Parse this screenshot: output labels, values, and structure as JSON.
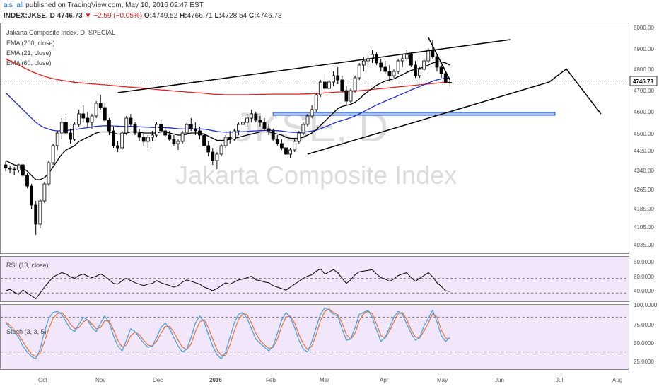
{
  "header": {
    "user": "ais_all",
    "published": " published on TradingView.com, May 10, 2016 02:47 EST",
    "ticker": "INDEX:JKSE, D",
    "last": "4746.73",
    "change": "−2.59 (−0.05%)",
    "o_label": "O:",
    "o": "4749.52",
    "h_label": "H:",
    "h": "4766.71",
    "l_label": "L:",
    "l": "4728.54",
    "c_label": "C:",
    "c": "4746.73"
  },
  "colors": {
    "ema200": "#e02020",
    "ema60": "#1f2fc8",
    "ema21": "#000000",
    "rsi_bg": "#f2e6fb",
    "stoch_k": "#3aa0e8",
    "stoch_d": "#f07030",
    "hline": "#2050c0"
  },
  "chart_data": [
    {
      "type": "candlestick",
      "title": "Jakarta Composite Index, D, SPECIAL",
      "watermark_symbol": "JKSE, D",
      "watermark_name": "Jakarta Composite Index",
      "legend": [
        "EMA (200, close)",
        "EMA (21, close)",
        "EMA (60, close)"
      ],
      "y_ticks": [
        "5000.00",
        "4900.00",
        "4800.00",
        "4700.00",
        "4600.00",
        "4500.00",
        "4420.00",
        "4340.00",
        "4265.00",
        "4185.00",
        "4105.00",
        "4035.00"
      ],
      "last_price_label": "4746.73",
      "x_ticks": [
        "Oct",
        "Nov",
        "Dec",
        "2016",
        "Feb",
        "Mar",
        "Apr",
        "May",
        "Jun",
        "Jul",
        "Aug"
      ],
      "ohlc": [
        [
          4360,
          4375,
          4330,
          4345
        ],
        [
          4345,
          4355,
          4320,
          4340
        ],
        [
          4340,
          4350,
          4310,
          4335
        ],
        [
          4335,
          4365,
          4325,
          4360
        ],
        [
          4360,
          4370,
          4300,
          4310
        ],
        [
          4310,
          4320,
          4250,
          4260
        ],
        [
          4260,
          4270,
          4150,
          4170
        ],
        [
          4170,
          4190,
          4030,
          4080
        ],
        [
          4080,
          4200,
          4060,
          4190
        ],
        [
          4190,
          4280,
          4180,
          4270
        ],
        [
          4270,
          4380,
          4260,
          4370
        ],
        [
          4370,
          4460,
          4360,
          4450
        ],
        [
          4450,
          4520,
          4430,
          4510
        ],
        [
          4510,
          4580,
          4480,
          4560
        ],
        [
          4560,
          4600,
          4500,
          4510
        ],
        [
          4510,
          4530,
          4460,
          4480
        ],
        [
          4480,
          4560,
          4470,
          4550
        ],
        [
          4550,
          4620,
          4540,
          4600
        ],
        [
          4600,
          4640,
          4560,
          4580
        ],
        [
          4580,
          4610,
          4540,
          4560
        ],
        [
          4560,
          4600,
          4530,
          4590
        ],
        [
          4590,
          4660,
          4580,
          4650
        ],
        [
          4650,
          4690,
          4620,
          4630
        ],
        [
          4630,
          4650,
          4560,
          4570
        ],
        [
          4570,
          4580,
          4500,
          4520
        ],
        [
          4520,
          4540,
          4440,
          4450
        ],
        [
          4450,
          4470,
          4420,
          4440
        ],
        [
          4440,
          4520,
          4430,
          4510
        ],
        [
          4510,
          4590,
          4500,
          4580
        ],
        [
          4580,
          4600,
          4540,
          4550
        ],
        [
          4550,
          4560,
          4500,
          4510
        ],
        [
          4510,
          4530,
          4470,
          4490
        ],
        [
          4490,
          4510,
          4450,
          4470
        ],
        [
          4470,
          4500,
          4440,
          4490
        ],
        [
          4490,
          4520,
          4470,
          4500
        ],
        [
          4500,
          4560,
          4490,
          4550
        ],
        [
          4550,
          4570,
          4510,
          4520
        ],
        [
          4520,
          4540,
          4490,
          4500
        ],
        [
          4500,
          4520,
          4470,
          4480
        ],
        [
          4480,
          4500,
          4450,
          4460
        ],
        [
          4460,
          4480,
          4430,
          4470
        ],
        [
          4470,
          4520,
          4460,
          4510
        ],
        [
          4510,
          4560,
          4500,
          4550
        ],
        [
          4550,
          4580,
          4520,
          4530
        ],
        [
          4530,
          4560,
          4500,
          4520
        ],
        [
          4520,
          4540,
          4480,
          4500
        ],
        [
          4500,
          4510,
          4440,
          4450
        ],
        [
          4450,
          4470,
          4400,
          4420
        ],
        [
          4420,
          4440,
          4360,
          4380
        ],
        [
          4380,
          4420,
          4340,
          4410
        ],
        [
          4410,
          4460,
          4400,
          4450
        ],
        [
          4450,
          4500,
          4440,
          4490
        ],
        [
          4490,
          4520,
          4460,
          4480
        ],
        [
          4480,
          4530,
          4470,
          4520
        ],
        [
          4520,
          4560,
          4500,
          4550
        ],
        [
          4550,
          4580,
          4520,
          4560
        ],
        [
          4560,
          4600,
          4540,
          4580
        ],
        [
          4580,
          4620,
          4560,
          4600
        ],
        [
          4600,
          4610,
          4560,
          4570
        ],
        [
          4570,
          4590,
          4540,
          4560
        ],
        [
          4560,
          4580,
          4520,
          4530
        ],
        [
          4530,
          4550,
          4500,
          4520
        ],
        [
          4520,
          4530,
          4470,
          4480
        ],
        [
          4480,
          4500,
          4450,
          4460
        ],
        [
          4460,
          4480,
          4430,
          4440
        ],
        [
          4440,
          4450,
          4400,
          4410
        ],
        [
          4410,
          4440,
          4390,
          4430
        ],
        [
          4430,
          4480,
          4420,
          4470
        ],
        [
          4470,
          4520,
          4460,
          4510
        ],
        [
          4510,
          4560,
          4500,
          4550
        ],
        [
          4550,
          4600,
          4540,
          4590
        ],
        [
          4590,
          4640,
          4580,
          4620
        ],
        [
          4620,
          4700,
          4610,
          4690
        ],
        [
          4690,
          4760,
          4680,
          4750
        ],
        [
          4750,
          4790,
          4700,
          4720
        ],
        [
          4720,
          4760,
          4700,
          4750
        ],
        [
          4750,
          4800,
          4730,
          4780
        ],
        [
          4780,
          4820,
          4740,
          4760
        ],
        [
          4760,
          4780,
          4700,
          4710
        ],
        [
          4710,
          4730,
          4640,
          4660
        ],
        [
          4660,
          4720,
          4650,
          4710
        ],
        [
          4710,
          4780,
          4700,
          4770
        ],
        [
          4770,
          4840,
          4760,
          4830
        ],
        [
          4830,
          4870,
          4800,
          4850
        ],
        [
          4850,
          4880,
          4820,
          4860
        ],
        [
          4860,
          4900,
          4840,
          4880
        ],
        [
          4880,
          4890,
          4830,
          4840
        ],
        [
          4840,
          4860,
          4800,
          4820
        ],
        [
          4820,
          4850,
          4790,
          4800
        ],
        [
          4800,
          4830,
          4760,
          4780
        ],
        [
          4780,
          4810,
          4770,
          4800
        ],
        [
          4800,
          4860,
          4790,
          4850
        ],
        [
          4850,
          4880,
          4820,
          4860
        ],
        [
          4860,
          4900,
          4850,
          4880
        ],
        [
          4880,
          4890,
          4820,
          4830
        ],
        [
          4830,
          4850,
          4770,
          4780
        ],
        [
          4780,
          4820,
          4770,
          4810
        ],
        [
          4810,
          4860,
          4800,
          4850
        ],
        [
          4850,
          4910,
          4840,
          4900
        ],
        [
          4900,
          4950,
          4860,
          4870
        ],
        [
          4870,
          4880,
          4800,
          4820
        ],
        [
          4820,
          4830,
          4770,
          4790
        ],
        [
          4790,
          4800,
          4750,
          4749
        ],
        [
          4749,
          4767,
          4729,
          4747
        ]
      ],
      "ema21": [
        4380,
        4370,
        4360,
        4355,
        4345,
        4330,
        4310,
        4290,
        4290,
        4300,
        4320,
        4350,
        4380,
        4410,
        4430,
        4440,
        4450,
        4470,
        4480,
        4490,
        4500,
        4510,
        4515,
        4515,
        4515,
        4510,
        4505,
        4505,
        4510,
        4515,
        4515,
        4515,
        4510,
        4510,
        4510,
        4510,
        4515,
        4515,
        4510,
        4505,
        4500,
        4500,
        4505,
        4510,
        4510,
        4510,
        4505,
        4495,
        4485,
        4475,
        4475,
        4475,
        4480,
        4485,
        4490,
        4495,
        4500,
        4505,
        4510,
        4515,
        4515,
        4515,
        4510,
        4505,
        4500,
        4490,
        4485,
        4485,
        4485,
        4490,
        4500,
        4510,
        4525,
        4545,
        4565,
        4585,
        4605,
        4625,
        4635,
        4640,
        4645,
        4655,
        4670,
        4690,
        4705,
        4720,
        4735,
        4745,
        4755,
        4760,
        4765,
        4775,
        4785,
        4795,
        4805,
        4810,
        4815,
        4820,
        4830,
        4840,
        4845,
        4845,
        4840,
        4830
      ],
      "ema60": [
        4700,
        4680,
        4660,
        4640,
        4620,
        4600,
        4580,
        4560,
        4545,
        4535,
        4528,
        4522,
        4520,
        4520,
        4522,
        4524,
        4526,
        4529,
        4532,
        4535,
        4538,
        4541,
        4543,
        4544,
        4544,
        4543,
        4542,
        4541,
        4541,
        4541,
        4540,
        4539,
        4538,
        4537,
        4536,
        4536,
        4536,
        4535,
        4534,
        4532,
        4530,
        4529,
        4529,
        4529,
        4529,
        4529,
        4528,
        4525,
        4521,
        4517,
        4515,
        4514,
        4514,
        4514,
        4515,
        4516,
        4517,
        4519,
        4520,
        4521,
        4522,
        4523,
        4522,
        4521,
        4519,
        4516,
        4514,
        4513,
        4513,
        4514,
        4516,
        4519,
        4523,
        4530,
        4538,
        4546,
        4555,
        4563,
        4569,
        4575,
        4582,
        4590,
        4600,
        4611,
        4621,
        4632,
        4642,
        4651,
        4660,
        4669,
        4677,
        4686,
        4695,
        4704,
        4713,
        4721,
        4729,
        4737,
        4746,
        4754,
        4760,
        4765,
        4768,
        4768
      ],
      "ema200": [
        4860,
        4850,
        4840,
        4830,
        4820,
        4810,
        4800,
        4792,
        4784,
        4777,
        4771,
        4766,
        4762,
        4758,
        4755,
        4752,
        4749,
        4747,
        4745,
        4743,
        4741,
        4740,
        4738,
        4737,
        4735,
        4733,
        4731,
        4729,
        4727,
        4726,
        4724,
        4723,
        4721,
        4719,
        4717,
        4715,
        4713,
        4712,
        4710,
        4708,
        4706,
        4705,
        4703,
        4702,
        4700,
        4699,
        4697,
        4695,
        4693,
        4692,
        4691,
        4690,
        4690,
        4690,
        4690,
        4690,
        4690,
        4691,
        4691,
        4692,
        4692,
        4693,
        4693,
        4693,
        4693,
        4693,
        4693,
        4693,
        4693,
        4694,
        4694,
        4695,
        4696,
        4697,
        4699,
        4700,
        4702,
        4703,
        4704,
        4705,
        4706,
        4707,
        4709,
        4711,
        4713,
        4715,
        4717,
        4719,
        4721,
        4723,
        4725,
        4727,
        4729,
        4731,
        4733,
        4735,
        4737,
        4739,
        4741,
        4743,
        4745,
        4747,
        4748,
        4749
      ],
      "horizontal_level": 4600,
      "channel_upper": [
        [
          26,
          4700
        ],
        [
          117,
          4950
        ]
      ],
      "channel_lower": [
        [
          70,
          4410
        ],
        [
          126,
          4750
        ]
      ],
      "projection": [
        [
          126,
          4750
        ],
        [
          130,
          4812
        ],
        [
          138,
          4600
        ]
      ]
    },
    {
      "type": "line",
      "title": "RSI (13, close)",
      "y_ticks": [
        "80.0000",
        "60.0000",
        "40.0000"
      ],
      "band": [
        40,
        60
      ],
      "values": [
        43,
        45,
        41,
        38,
        44,
        40,
        36,
        32,
        40,
        48,
        55,
        62,
        65,
        68,
        66,
        62,
        60,
        64,
        66,
        63,
        61,
        63,
        66,
        63,
        58,
        53,
        52,
        57,
        60,
        57,
        54,
        52,
        50,
        52,
        53,
        57,
        54,
        52,
        50,
        48,
        50,
        55,
        58,
        56,
        54,
        52,
        48,
        46,
        43,
        46,
        50,
        54,
        52,
        55,
        58,
        59,
        61,
        63,
        58,
        57,
        55,
        54,
        50,
        48,
        46,
        44,
        48,
        52,
        56,
        60,
        63,
        65,
        70,
        73,
        66,
        69,
        72,
        68,
        60,
        53,
        58,
        65,
        69,
        70,
        71,
        72,
        66,
        61,
        59,
        56,
        59,
        64,
        66,
        68,
        61,
        56,
        60,
        64,
        68,
        62,
        54,
        49,
        43,
        42
      ]
    },
    {
      "type": "line",
      "title": "Stoch (3, 3, 5)",
      "y_ticks": [
        "100.0000",
        "75.0000",
        "50.0000",
        "25.0000"
      ],
      "band": [
        20,
        80
      ],
      "k": [
        70,
        62,
        55,
        45,
        30,
        20,
        12,
        8,
        25,
        55,
        78,
        88,
        90,
        85,
        72,
        60,
        55,
        68,
        80,
        75,
        62,
        55,
        70,
        82,
        70,
        48,
        30,
        22,
        40,
        60,
        55,
        45,
        35,
        28,
        30,
        45,
        62,
        70,
        60,
        45,
        30,
        20,
        25,
        45,
        70,
        82,
        72,
        50,
        30,
        15,
        8,
        20,
        45,
        70,
        85,
        88,
        78,
        60,
        42,
        35,
        28,
        22,
        30,
        52,
        75,
        88,
        80,
        62,
        40,
        25,
        20,
        38,
        62,
        85,
        96,
        92,
        85,
        82,
        60,
        40,
        42,
        62,
        85,
        88,
        92,
        80,
        58,
        38,
        45,
        62,
        80,
        90,
        85,
        68,
        52,
        40,
        45,
        65,
        78,
        92,
        72,
        48,
        38,
        45
      ],
      "d": [
        72,
        66,
        58,
        50,
        38,
        26,
        16,
        12,
        18,
        38,
        60,
        78,
        86,
        88,
        80,
        68,
        60,
        62,
        72,
        76,
        68,
        60,
        62,
        74,
        74,
        58,
        40,
        28,
        32,
        48,
        54,
        50,
        40,
        32,
        30,
        38,
        52,
        64,
        64,
        54,
        40,
        28,
        24,
        34,
        55,
        72,
        76,
        62,
        42,
        24,
        14,
        14,
        32,
        56,
        76,
        86,
        84,
        70,
        52,
        40,
        32,
        26,
        28,
        42,
        64,
        80,
        82,
        70,
        50,
        34,
        24,
        30,
        50,
        74,
        90,
        94,
        88,
        84,
        70,
        50,
        42,
        52,
        74,
        86,
        90,
        86,
        68,
        48,
        44,
        56,
        72,
        86,
        88,
        76,
        58,
        46,
        44,
        56,
        70,
        86,
        80,
        58,
        44,
        42
      ]
    }
  ]
}
